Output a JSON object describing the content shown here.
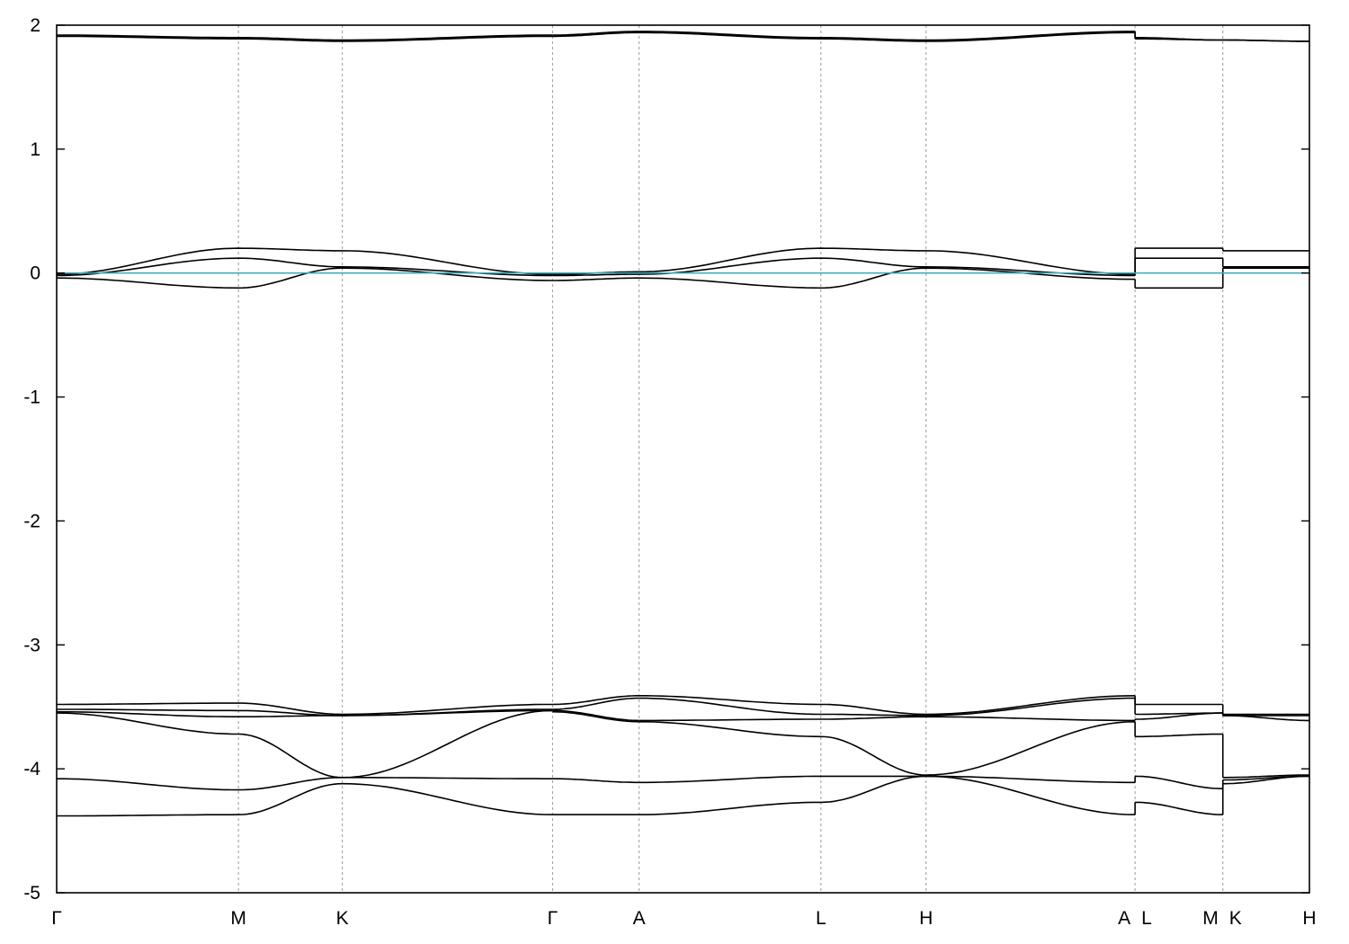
{
  "chart_data": {
    "type": "line",
    "title": "",
    "xlabel": "",
    "ylabel": "",
    "ylim": [
      -5,
      2
    ],
    "y_ticks": [
      "2",
      "1",
      "0",
      "-1",
      "-2",
      "-3",
      "-4",
      "-5"
    ],
    "xlim": [
      0,
      10.13
    ],
    "grid": "vertical dashed lines at high-symmetry points",
    "kpoints": [
      {
        "label": "Γ",
        "x": 0.0
      },
      {
        "label": "M",
        "x": 1.47
      },
      {
        "label": "K",
        "x": 2.31
      },
      {
        "label": "Γ",
        "x": 4.01
      },
      {
        "label": "A",
        "x": 4.71
      },
      {
        "label": "L",
        "x": 6.18
      },
      {
        "label": "H",
        "x": 7.03
      },
      {
        "label": "A",
        "x": 8.72
      },
      {
        "label": "L",
        "x": 8.72
      },
      {
        "label": "M",
        "x": 9.43
      },
      {
        "label": "K",
        "x": 9.43
      },
      {
        "label": "H",
        "x": 10.13
      }
    ],
    "fermi_level": {
      "y": 0.0,
      "color": "#4aa8c0"
    },
    "line_color": "#000000",
    "segments": [
      {
        "x": [
          0.0,
          1.47,
          2.31,
          4.01
        ],
        "bands": [
          {
            "values": [
              1.92,
              1.9,
              1.88,
              1.92
            ],
            "shape": "dip"
          },
          {
            "values": [
              1.91,
              1.89,
              1.87,
              1.91
            ],
            "shape": "dip"
          },
          {
            "values": [
              -0.01,
              0.2,
              0.18,
              -0.01
            ],
            "shape": "hump"
          },
          {
            "values": [
              -0.02,
              0.12,
              0.05,
              -0.02
            ],
            "shape": "hump"
          },
          {
            "values": [
              -0.04,
              -0.12,
              0.04,
              -0.06
            ],
            "shape": "wave"
          },
          {
            "values": [
              -3.48,
              -3.47,
              -3.56,
              -3.48
            ],
            "shape": "smooth"
          },
          {
            "values": [
              -3.52,
              -3.53,
              -3.57,
              -3.52
            ],
            "shape": "smooth"
          },
          {
            "values": [
              -3.54,
              -3.58,
              -3.57,
              -3.53
            ],
            "shape": "smooth"
          },
          {
            "values": [
              -3.55,
              -3.72,
              -4.07,
              -3.53
            ],
            "shape": "smooth"
          },
          {
            "values": [
              -4.08,
              -4.17,
              -4.07,
              -4.08
            ],
            "shape": "smooth"
          },
          {
            "values": [
              -4.38,
              -4.37,
              -4.12,
              -4.37
            ],
            "shape": "smooth"
          }
        ]
      },
      {
        "x": [
          4.01,
          4.71
        ],
        "bands": [
          {
            "values": [
              1.92,
              1.95
            ],
            "shape": "smooth"
          },
          {
            "values": [
              1.91,
              1.94
            ],
            "shape": "smooth"
          },
          {
            "values": [
              -0.01,
              0.01
            ],
            "shape": "smooth"
          },
          {
            "values": [
              -0.02,
              -0.01
            ],
            "shape": "smooth"
          },
          {
            "values": [
              -0.06,
              -0.04
            ],
            "shape": "smooth"
          },
          {
            "values": [
              -3.48,
              -3.41
            ],
            "shape": "smooth"
          },
          {
            "values": [
              -3.52,
              -3.43
            ],
            "shape": "smooth"
          },
          {
            "values": [
              -3.53,
              -3.61
            ],
            "shape": "smooth"
          },
          {
            "values": [
              -3.54,
              -3.62
            ],
            "shape": "smooth"
          },
          {
            "values": [
              -4.08,
              -4.11
            ],
            "shape": "smooth"
          },
          {
            "values": [
              -4.37,
              -4.37
            ],
            "shape": "smooth"
          }
        ]
      },
      {
        "x": [
          4.71,
          6.18,
          7.03,
          8.72
        ],
        "bands": [
          {
            "values": [
              1.95,
              1.9,
              1.88,
              1.95
            ],
            "shape": "dip"
          },
          {
            "values": [
              1.94,
              1.89,
              1.87,
              1.94
            ],
            "shape": "dip"
          },
          {
            "values": [
              0.01,
              0.2,
              0.18,
              -0.01
            ],
            "shape": "hump"
          },
          {
            "values": [
              -0.01,
              0.12,
              0.05,
              -0.02
            ],
            "shape": "hump"
          },
          {
            "values": [
              -0.04,
              -0.12,
              0.04,
              -0.05
            ],
            "shape": "wave"
          },
          {
            "values": [
              -3.41,
              -3.48,
              -3.56,
              -3.41
            ],
            "shape": "smooth"
          },
          {
            "values": [
              -3.43,
              -3.56,
              -3.57,
              -3.43
            ],
            "shape": "smooth"
          },
          {
            "values": [
              -3.61,
              -3.6,
              -3.58,
              -3.61
            ],
            "shape": "smooth"
          },
          {
            "values": [
              -3.62,
              -3.74,
              -4.05,
              -3.62
            ],
            "shape": "smooth"
          },
          {
            "values": [
              -4.11,
              -4.06,
              -4.06,
              -4.11
            ],
            "shape": "smooth"
          },
          {
            "values": [
              -4.37,
              -4.27,
              -4.06,
              -4.37
            ],
            "shape": "smooth"
          }
        ]
      },
      {
        "x": [
          8.72,
          9.43
        ],
        "bands": [
          {
            "values": [
              1.9,
              1.88
            ],
            "shape": "smooth"
          },
          {
            "values": [
              1.89,
              1.88
            ],
            "shape": "smooth"
          },
          {
            "values": [
              0.2,
              0.2
            ],
            "shape": "smooth"
          },
          {
            "values": [
              0.12,
              0.12
            ],
            "shape": "smooth"
          },
          {
            "values": [
              -0.12,
              -0.12
            ],
            "shape": "smooth"
          },
          {
            "values": [
              -3.48,
              -3.48
            ],
            "shape": "smooth"
          },
          {
            "values": [
              -3.56,
              -3.55
            ],
            "shape": "smooth"
          },
          {
            "values": [
              -3.6,
              -3.55
            ],
            "shape": "smooth"
          },
          {
            "values": [
              -3.74,
              -3.72
            ],
            "shape": "smooth"
          },
          {
            "values": [
              -4.06,
              -4.16
            ],
            "shape": "smooth"
          },
          {
            "values": [
              -4.27,
              -4.37
            ],
            "shape": "smooth"
          }
        ]
      },
      {
        "x": [
          9.43,
          10.13
        ],
        "bands": [
          {
            "values": [
              1.88,
              1.87
            ],
            "shape": "smooth"
          },
          {
            "values": [
              1.88,
              1.87
            ],
            "shape": "smooth"
          },
          {
            "values": [
              0.18,
              0.18
            ],
            "shape": "smooth"
          },
          {
            "values": [
              0.05,
              0.05
            ],
            "shape": "smooth"
          },
          {
            "values": [
              0.04,
              0.04
            ],
            "shape": "smooth"
          },
          {
            "values": [
              -3.56,
              -3.56
            ],
            "shape": "smooth"
          },
          {
            "values": [
              -3.57,
              -3.57
            ],
            "shape": "smooth"
          },
          {
            "values": [
              -3.57,
              -3.61
            ],
            "shape": "smooth"
          },
          {
            "values": [
              -4.07,
              -4.05
            ],
            "shape": "smooth"
          },
          {
            "values": [
              -4.09,
              -4.06
            ],
            "shape": "smooth"
          },
          {
            "values": [
              -4.12,
              -4.06
            ],
            "shape": "smooth"
          }
        ]
      }
    ]
  }
}
